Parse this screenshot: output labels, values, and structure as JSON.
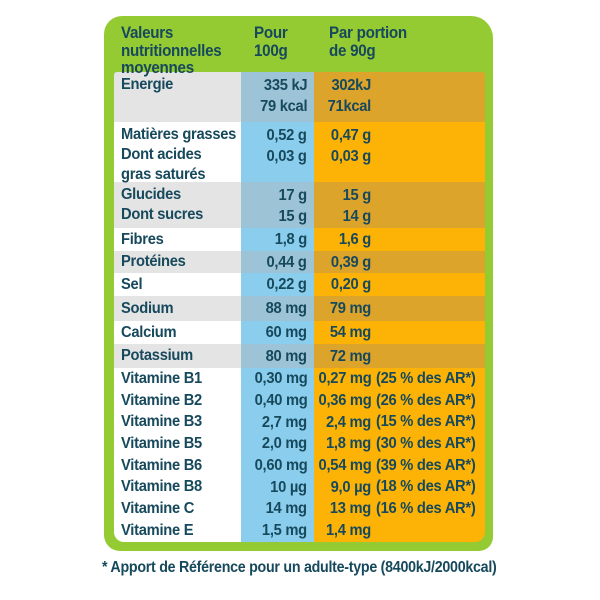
{
  "colors": {
    "border_green": "#94cb33",
    "text_teal": "#17495c",
    "col_100g_blue": "#8bcdec",
    "col_portion_orange": "#fcb306",
    "shaded_gray": "#e4e4e5"
  },
  "table": {
    "header": {
      "col1": [
        "Valeurs",
        "nutritionnelles",
        "moyennes"
      ],
      "col2": [
        "Pour",
        "100g"
      ],
      "col3": [
        "Par portion",
        "de 90g"
      ]
    },
    "rows": [
      {
        "label": [
          "Energie"
        ],
        "v100": [
          "335 kJ",
          "79 kcal"
        ],
        "v90": [
          "302kJ",
          "71kcal"
        ],
        "ar": ""
      },
      {
        "label": [
          "Matières grasses",
          "Dont acides",
          "gras saturés"
        ],
        "v100": [
          "0,52 g",
          "0,03 g"
        ],
        "v90": [
          "0,47 g",
          "0,03 g"
        ],
        "ar": ""
      },
      {
        "label": [
          "Glucides",
          "Dont sucres"
        ],
        "v100": [
          "17 g",
          "15 g"
        ],
        "v90": [
          "15 g",
          "14 g"
        ],
        "ar": ""
      },
      {
        "label": [
          "Fibres"
        ],
        "v100": [
          "1,8 g"
        ],
        "v90": [
          "1,6 g"
        ],
        "ar": ""
      },
      {
        "label": [
          "Protéines"
        ],
        "v100": [
          "0,44 g"
        ],
        "v90": [
          "0,39 g"
        ],
        "ar": ""
      },
      {
        "label": [
          "Sel"
        ],
        "v100": [
          "0,22 g"
        ],
        "v90": [
          "0,20 g"
        ],
        "ar": ""
      },
      {
        "label": [
          "Sodium"
        ],
        "v100": [
          "88 mg"
        ],
        "v90": [
          "79 mg"
        ],
        "ar": ""
      },
      {
        "label": [
          "Calcium"
        ],
        "v100": [
          "60 mg"
        ],
        "v90": [
          "54 mg"
        ],
        "ar": ""
      },
      {
        "label": [
          "Potassium"
        ],
        "v100": [
          "80 mg"
        ],
        "v90": [
          "72 mg"
        ],
        "ar": ""
      },
      {
        "label": [
          "Vitamine B1"
        ],
        "v100": [
          "0,30 mg"
        ],
        "v90": [
          "0,27 mg"
        ],
        "ar": "(25 % des AR*)"
      },
      {
        "label": [
          "Vitamine B2"
        ],
        "v100": [
          "0,40 mg"
        ],
        "v90": [
          "0,36 mg"
        ],
        "ar": "(26 % des AR*)"
      },
      {
        "label": [
          "Vitamine B3"
        ],
        "v100": [
          "2,7 mg"
        ],
        "v90": [
          "2,4 mg"
        ],
        "ar": "(15 % des AR*)"
      },
      {
        "label": [
          "Vitamine B5"
        ],
        "v100": [
          "2,0 mg"
        ],
        "v90": [
          "1,8 mg"
        ],
        "ar": "(30 % des AR*)"
      },
      {
        "label": [
          "Vitamine B6"
        ],
        "v100": [
          "0,60 mg"
        ],
        "v90": [
          "0,54 mg"
        ],
        "ar": "(39 % des AR*)"
      },
      {
        "label": [
          "Vitamine B8"
        ],
        "v100": [
          "10 µg"
        ],
        "v90": [
          "9,0 µg"
        ],
        "ar": "(18 % des AR*)"
      },
      {
        "label": [
          "Vitamine C"
        ],
        "v100": [
          "14 mg"
        ],
        "v90": [
          "13 mg"
        ],
        "ar": "(16 % des AR*)"
      },
      {
        "label": [
          "Vitamine E"
        ],
        "v100": [
          "1,5 mg"
        ],
        "v90": [
          "1,4 mg"
        ],
        "ar": ""
      }
    ]
  },
  "footnote": "* Apport de Référence pour un adulte-type (8400kJ/2000kcal)"
}
